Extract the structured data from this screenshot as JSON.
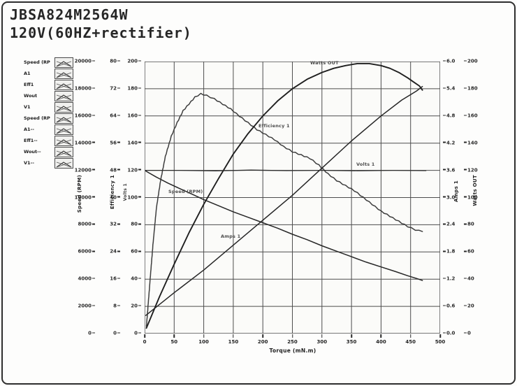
{
  "window": {
    "title_line1": "JBSA824M2564W",
    "title_line2": "120V(60HZ+rectifier)"
  },
  "legend": {
    "items": [
      {
        "label": "Speed (RP",
        "icon": "line-style-swatch"
      },
      {
        "label": "A1",
        "icon": "line-style-swatch"
      },
      {
        "label": "Eff1",
        "icon": "line-style-swatch"
      },
      {
        "label": "Wout",
        "icon": "line-style-swatch"
      },
      {
        "label": "V1",
        "icon": "line-style-swatch"
      },
      {
        "label": "Speed (RP",
        "icon": "line-style-swatch"
      },
      {
        "label": "A1--",
        "icon": "line-style-swatch"
      },
      {
        "label": "Eff1--",
        "icon": "line-style-swatch"
      },
      {
        "label": "Wout--",
        "icon": "line-style-swatch"
      },
      {
        "label": "V1--",
        "icon": "line-style-swatch"
      }
    ]
  },
  "chart_data": {
    "type": "line",
    "title": "JBSA824M2564W 120V(60HZ+rectifier)",
    "xlabel": "Torque (mN.m)",
    "xlim": [
      0,
      500
    ],
    "grid": true,
    "x_ticks": [
      "0",
      "50",
      "100",
      "150",
      "200",
      "250",
      "300",
      "350",
      "400",
      "450",
      "500"
    ],
    "axes": {
      "speed": {
        "title": "Speed (RPM)",
        "max": 20000,
        "ticks": [
          "0",
          "2000",
          "4000",
          "6000",
          "8000",
          "10000",
          "12000",
          "14000",
          "16000",
          "18000",
          "20000"
        ]
      },
      "efficiency": {
        "title": "Efficiency 1",
        "max": 80,
        "ticks": [
          "0",
          "8",
          "16",
          "24",
          "32",
          "40",
          "48",
          "56",
          "64",
          "72",
          "80"
        ]
      },
      "volts": {
        "title": "Volts 1",
        "max": 200,
        "ticks": [
          "0",
          "20",
          "40",
          "60",
          "80",
          "100",
          "120",
          "140",
          "160",
          "180",
          "200"
        ]
      },
      "amps": {
        "title": "Amps 1",
        "max": 6,
        "ticks": [
          "0.0",
          "0.6",
          "1.2",
          "1.8",
          "2.4",
          "3.0",
          "3.6",
          "4.2",
          "4.8",
          "5.4",
          "6.0"
        ]
      },
      "watts": {
        "title": "Watts OUT",
        "max": 200,
        "ticks": [
          "0",
          "20",
          "40",
          "60",
          "80",
          "100",
          "120",
          "140",
          "160",
          "180",
          "200"
        ]
      }
    },
    "series": [
      {
        "name": "Speed (RPM)",
        "axis": "speed",
        "style": "smooth",
        "width": 1.5,
        "color": "#262626",
        "points": [
          [
            2,
            11950
          ],
          [
            20,
            11500
          ],
          [
            40,
            11050
          ],
          [
            60,
            10650
          ],
          [
            80,
            10250
          ],
          [
            100,
            9850
          ],
          [
            125,
            9400
          ],
          [
            150,
            8950
          ],
          [
            175,
            8550
          ],
          [
            200,
            8150
          ],
          [
            225,
            7750
          ],
          [
            250,
            7300
          ],
          [
            275,
            6900
          ],
          [
            300,
            6450
          ],
          [
            325,
            6050
          ],
          [
            350,
            5650
          ],
          [
            375,
            5250
          ],
          [
            400,
            4900
          ],
          [
            425,
            4550
          ],
          [
            445,
            4250
          ],
          [
            460,
            4050
          ],
          [
            470,
            3900
          ]
        ]
      },
      {
        "name": "Efficiency 1",
        "axis": "efficiency",
        "style": "jagged",
        "width": 1.5,
        "color": "#3d3d3d",
        "points": [
          [
            3,
            2
          ],
          [
            8,
            13
          ],
          [
            14,
            26
          ],
          [
            20,
            37
          ],
          [
            27,
            45
          ],
          [
            35,
            52
          ],
          [
            45,
            58
          ],
          [
            55,
            62
          ],
          [
            65,
            65.5
          ],
          [
            75,
            67.5
          ],
          [
            85,
            69.5
          ],
          [
            95,
            70.5
          ],
          [
            105,
            70
          ],
          [
            118,
            69
          ],
          [
            132,
            67.5
          ],
          [
            146,
            66
          ],
          [
            160,
            64
          ],
          [
            175,
            62
          ],
          [
            190,
            60
          ],
          [
            205,
            58.5
          ],
          [
            220,
            57
          ],
          [
            235,
            55
          ],
          [
            250,
            53.5
          ],
          [
            265,
            52.5
          ],
          [
            280,
            51.5
          ],
          [
            295,
            49.5
          ],
          [
            310,
            47
          ],
          [
            325,
            45
          ],
          [
            340,
            43.5
          ],
          [
            355,
            42
          ],
          [
            370,
            40
          ],
          [
            385,
            38
          ],
          [
            400,
            36
          ],
          [
            415,
            34.5
          ],
          [
            430,
            33
          ],
          [
            445,
            31.5
          ],
          [
            458,
            30.5
          ],
          [
            470,
            30
          ]
        ]
      },
      {
        "name": "Watts OUT",
        "axis": "watts",
        "style": "smooth",
        "width": 1.9,
        "color": "#1f1f1f",
        "points": [
          [
            3,
            4
          ],
          [
            25,
            27
          ],
          [
            50,
            51
          ],
          [
            75,
            74
          ],
          [
            100,
            95
          ],
          [
            125,
            114
          ],
          [
            150,
            132
          ],
          [
            175,
            147
          ],
          [
            200,
            160
          ],
          [
            225,
            171
          ],
          [
            250,
            180
          ],
          [
            275,
            187
          ],
          [
            300,
            192
          ],
          [
            320,
            195
          ],
          [
            340,
            197
          ],
          [
            360,
            198.5
          ],
          [
            380,
            198.5
          ],
          [
            400,
            197
          ],
          [
            415,
            195
          ],
          [
            430,
            192
          ],
          [
            445,
            188
          ],
          [
            455,
            185
          ],
          [
            465,
            182
          ],
          [
            470,
            179
          ]
        ]
      },
      {
        "name": "Amps 1",
        "axis": "amps",
        "style": "smooth",
        "width": 1.5,
        "color": "#262626",
        "points": [
          [
            2,
            0.4
          ],
          [
            50,
            0.9
          ],
          [
            100,
            1.4
          ],
          [
            150,
            1.95
          ],
          [
            200,
            2.5
          ],
          [
            250,
            3.05
          ],
          [
            300,
            3.65
          ],
          [
            350,
            4.25
          ],
          [
            400,
            4.8
          ],
          [
            435,
            5.15
          ],
          [
            460,
            5.35
          ],
          [
            470,
            5.45
          ]
        ]
      },
      {
        "name": "Volts 1",
        "axis": "volts",
        "style": "smooth",
        "width": 1.3,
        "color": "#2e2e2e",
        "points": [
          [
            2,
            120
          ],
          [
            60,
            120
          ],
          [
            120,
            119.6
          ],
          [
            180,
            120.2
          ],
          [
            240,
            119.8
          ],
          [
            300,
            120
          ],
          [
            360,
            119.7
          ],
          [
            420,
            120
          ],
          [
            476,
            119.8
          ]
        ]
      }
    ],
    "curve_labels": [
      {
        "text": "Speed (RPM)",
        "x": 36,
        "y": 186
      },
      {
        "text": "Efficiency 1",
        "x": 165,
        "y": 92
      },
      {
        "text": "Watts OUT",
        "x": 239,
        "y": 2
      },
      {
        "text": "Volts 1",
        "x": 305,
        "y": 147
      },
      {
        "text": "Amps 1",
        "x": 111,
        "y": 250
      }
    ]
  }
}
